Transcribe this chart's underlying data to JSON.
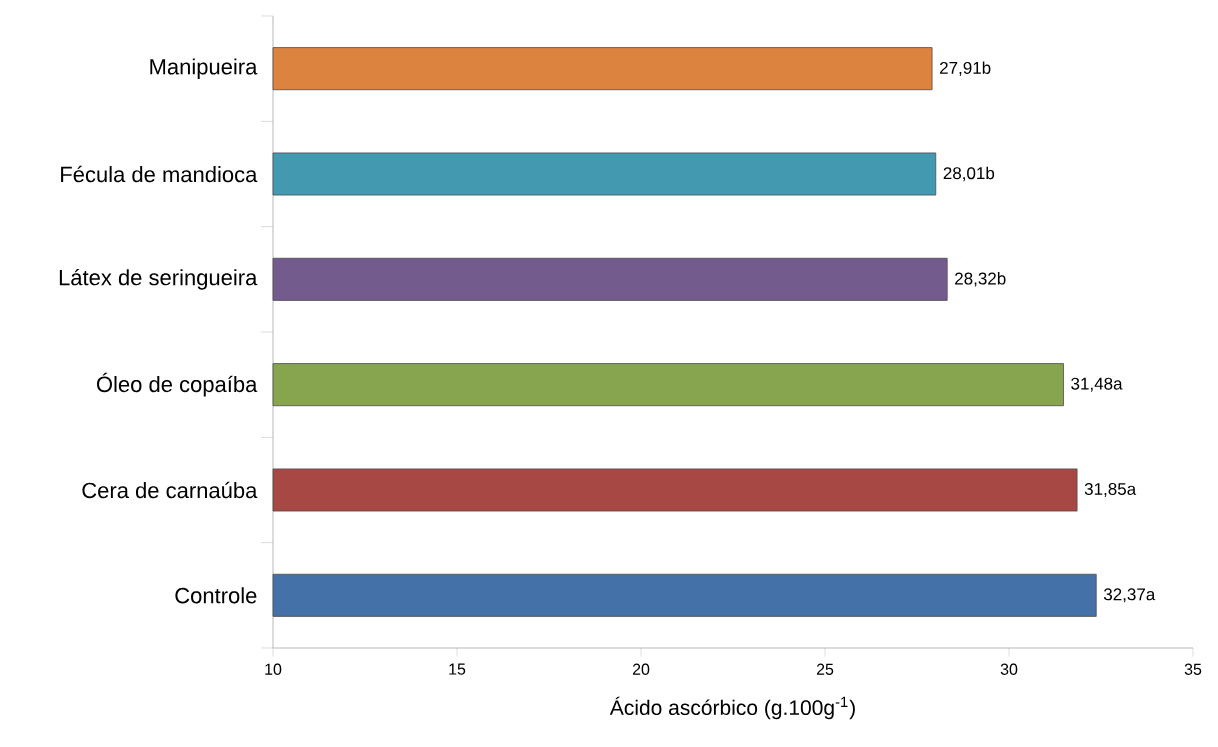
{
  "chart_data": {
    "type": "bar",
    "orientation": "horizontal",
    "xlabel": "Ácido ascórbico (g.100g$^{-1}$)",
    "categories": [
      "Manipueira",
      "Fécula de mandioca",
      "Látex de seringueira",
      "Óleo de copaíba",
      "Cera de carnaúba",
      "Controle"
    ],
    "values": [
      27.91,
      28.01,
      28.32,
      31.48,
      31.85,
      32.37
    ],
    "value_labels": [
      "27,91b",
      "28,01b",
      "28,32b",
      "31,48a",
      "31,85a",
      "32,37a"
    ],
    "colors": [
      "#dd8340",
      "#4299b0",
      "#735b8e",
      "#87a54f",
      "#a84845",
      "#4472a8"
    ],
    "xlim": [
      10,
      35
    ],
    "xticks": [
      10,
      15,
      20,
      25,
      30,
      35
    ]
  }
}
